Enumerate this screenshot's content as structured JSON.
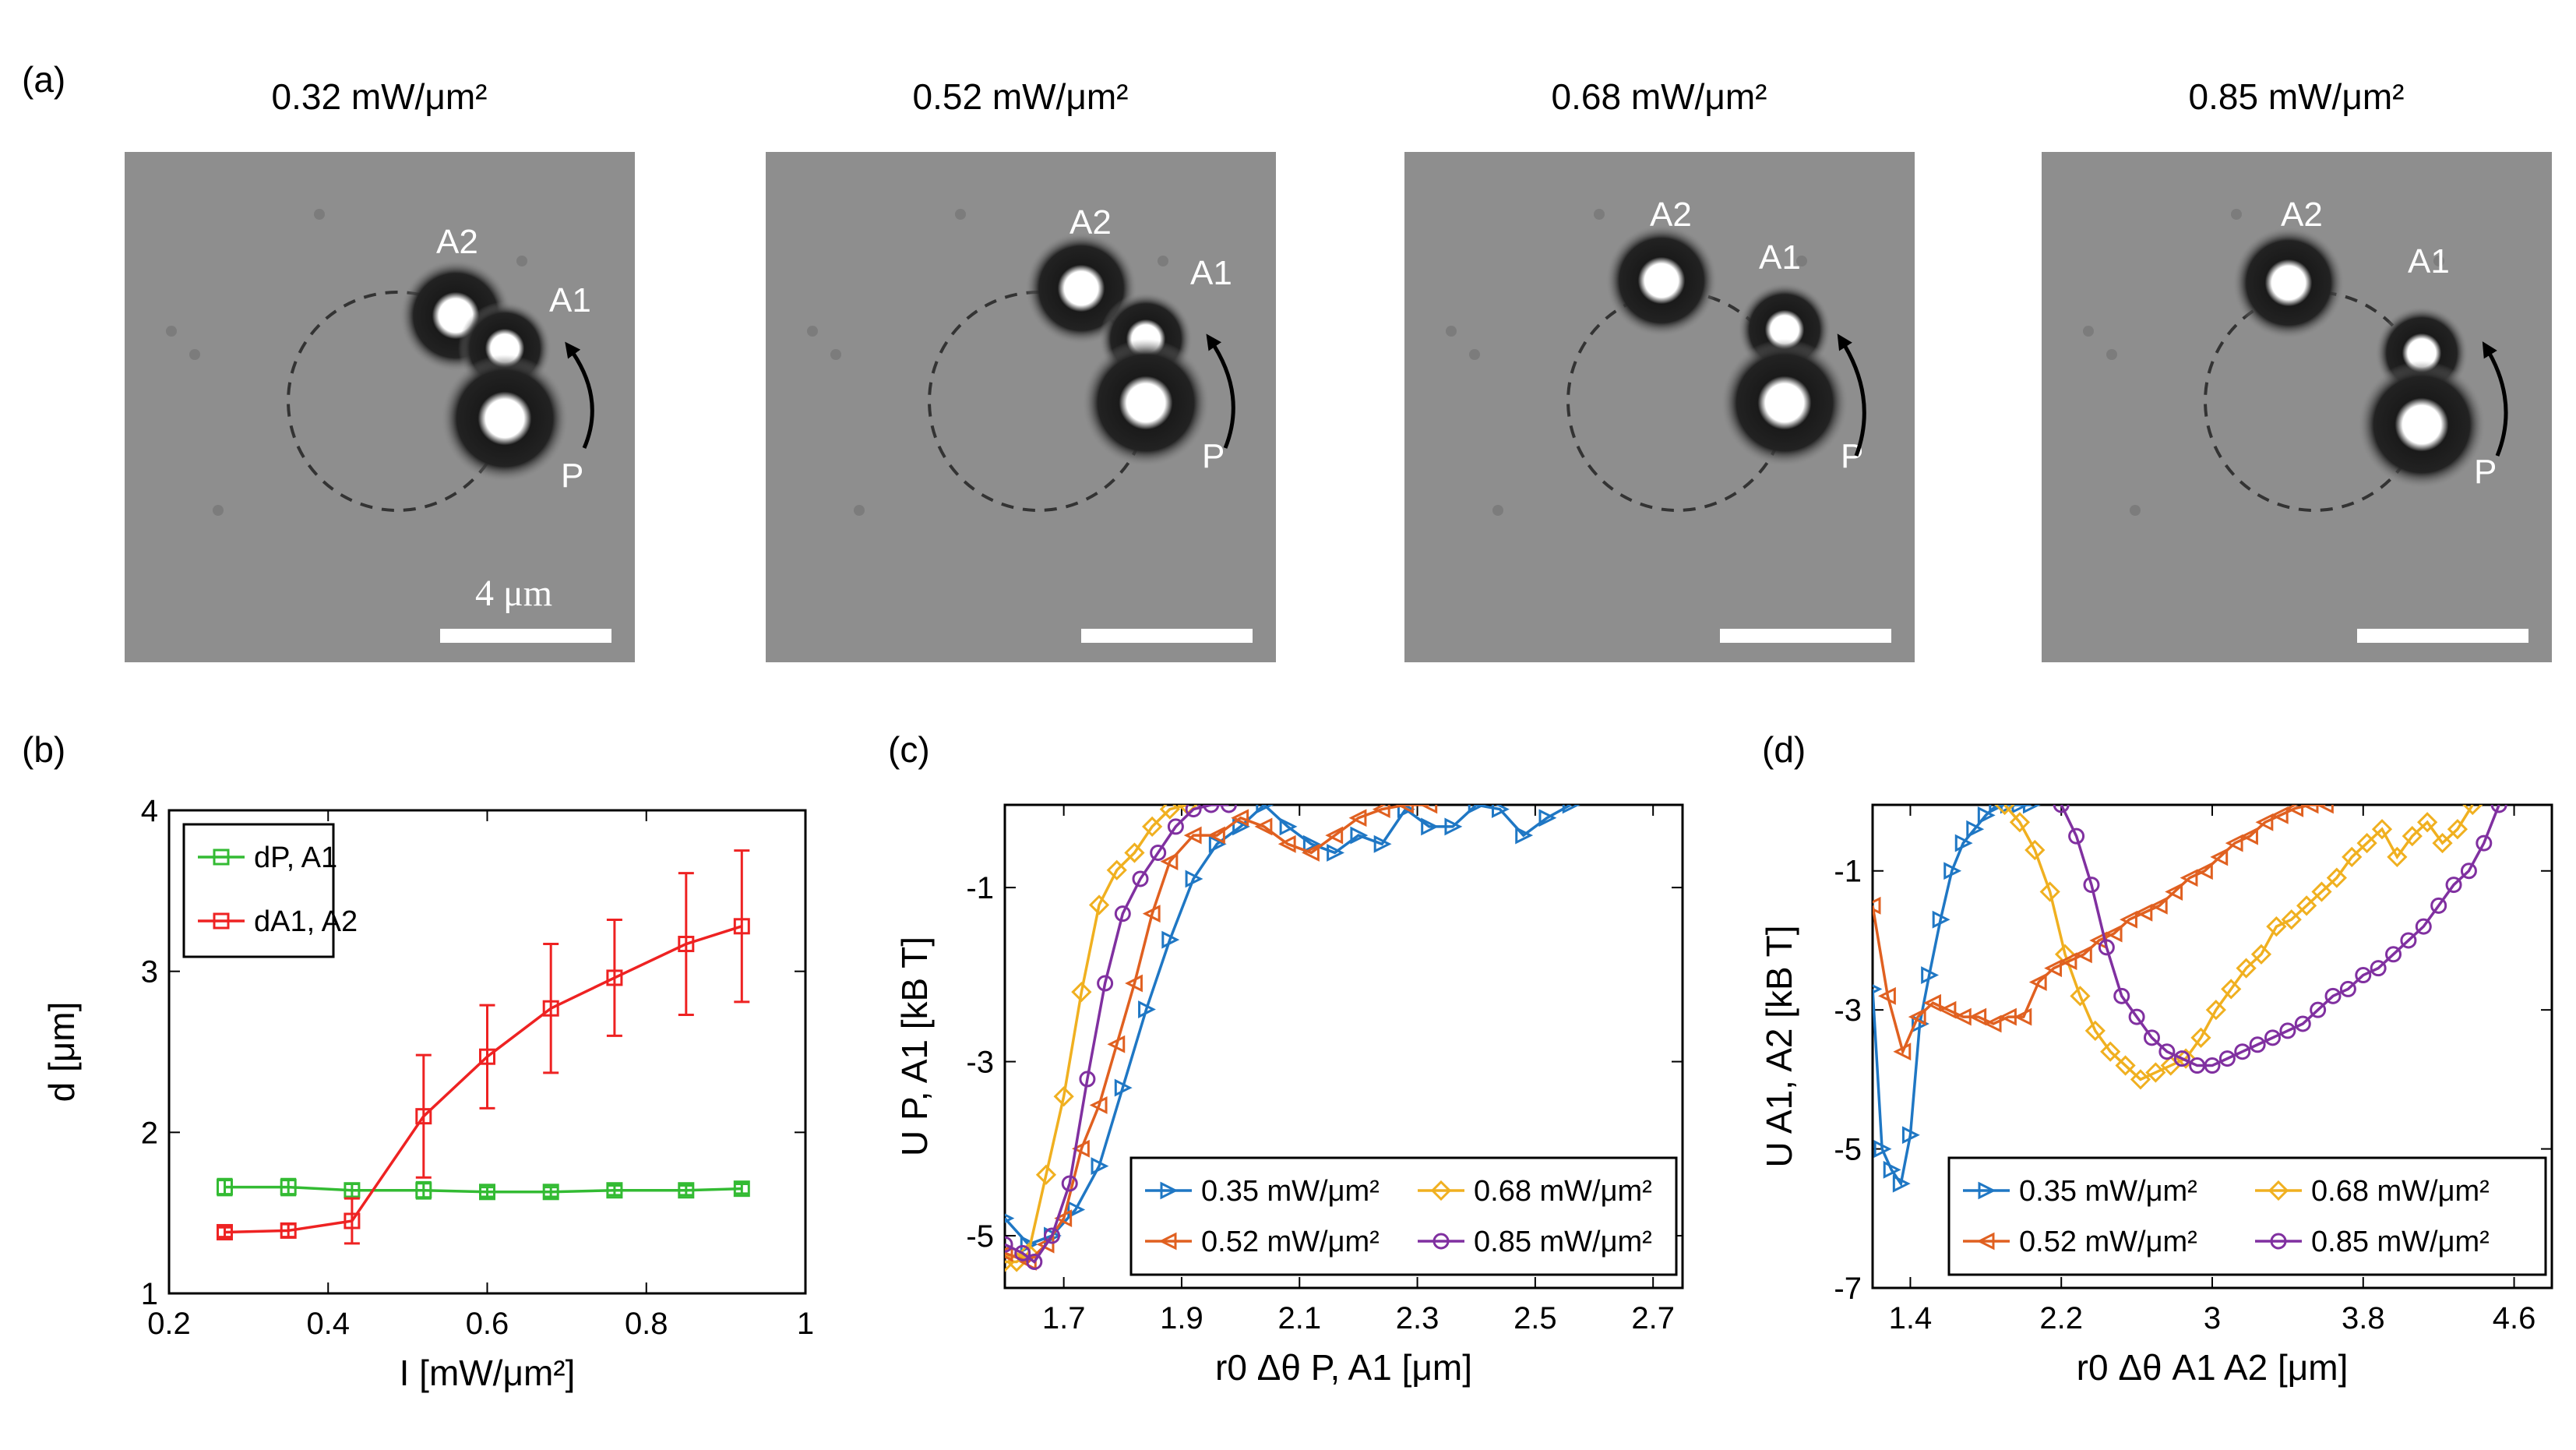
{
  "panel_a": {
    "label": "(a)",
    "scalebar_label": "4 μm",
    "marker_labels": {
      "p": "P",
      "a1": "A1",
      "a2": "A2"
    },
    "frames": [
      {
        "title": "0.32 mW/μm²"
      },
      {
        "title": "0.52 mW/μm²"
      },
      {
        "title": "0.68 mW/μm²"
      },
      {
        "title": "0.85 mW/μm²"
      }
    ]
  },
  "chart_data": [
    {
      "panel_label": "(b)",
      "type": "line",
      "xlabel": "I [mW/μm²]",
      "ylabel": "d [μm]",
      "xlim": [
        0.2,
        1
      ],
      "ylim": [
        1,
        4
      ],
      "xticks": [
        "0.2",
        "0.4",
        "0.6",
        "0.8",
        "1"
      ],
      "yticks": [
        "1",
        "2",
        "3",
        "4"
      ],
      "legend_position": "top-left",
      "series": [
        {
          "name": "dP, A1",
          "color": "#33bb33",
          "marker": "square",
          "x": [
            0.27,
            0.35,
            0.43,
            0.52,
            0.6,
            0.68,
            0.76,
            0.85,
            0.92
          ],
          "y": [
            1.66,
            1.66,
            1.64,
            1.64,
            1.63,
            1.63,
            1.64,
            1.64,
            1.65
          ],
          "err": [
            0.05,
            0.05,
            0.04,
            0.05,
            0.03,
            0.03,
            0.03,
            0.03,
            0.03
          ]
        },
        {
          "name": "dA1, A2",
          "color": "#ee2222",
          "marker": "square",
          "x": [
            0.27,
            0.35,
            0.43,
            0.52,
            0.6,
            0.68,
            0.76,
            0.85,
            0.92
          ],
          "y": [
            1.38,
            1.39,
            1.45,
            2.1,
            2.47,
            2.77,
            2.96,
            3.17,
            3.28
          ],
          "err": [
            0.03,
            0.04,
            0.14,
            0.38,
            0.32,
            0.4,
            0.36,
            0.44,
            0.47
          ]
        }
      ]
    },
    {
      "panel_label": "(c)",
      "type": "line",
      "xlabel": "r0 Δθ P, A1 [μm]",
      "ylabel": "U P, A1 [kB T]",
      "xlim": [
        1.6,
        2.75
      ],
      "ylim": [
        -5.6,
        -0.05
      ],
      "xticks": [
        "1.7",
        "1.9",
        "2.1",
        "2.3",
        "2.5",
        "2.7"
      ],
      "yticks": [
        "-1",
        "-3",
        "-5"
      ],
      "legend_position": "bottom-right",
      "series": [
        {
          "name": "0.35 mW/μm²",
          "color": "#1f77c4",
          "marker": "triangle-right",
          "x": [
            1.6,
            1.64,
            1.68,
            1.72,
            1.76,
            1.8,
            1.84,
            1.88,
            1.92,
            1.96,
            2.0,
            2.04,
            2.08,
            2.12,
            2.16,
            2.2,
            2.24,
            2.28,
            2.32,
            2.36,
            2.4,
            2.44,
            2.48,
            2.52,
            2.56
          ],
          "y": [
            -4.8,
            -5.1,
            -5.0,
            -4.7,
            -4.2,
            -3.3,
            -2.4,
            -1.6,
            -0.9,
            -0.5,
            -0.3,
            -0.05,
            -0.3,
            -0.5,
            -0.6,
            -0.4,
            -0.5,
            -0.1,
            -0.3,
            -0.3,
            -0.05,
            -0.1,
            -0.4,
            -0.2,
            -0.05
          ]
        },
        {
          "name": "0.68 mW/μm²",
          "color": "#f0b020",
          "marker": "diamond",
          "x": [
            1.6,
            1.62,
            1.64,
            1.67,
            1.7,
            1.73,
            1.76,
            1.79,
            1.82,
            1.85,
            1.88,
            1.91
          ],
          "y": [
            -5.3,
            -5.3,
            -5.2,
            -4.3,
            -3.4,
            -2.2,
            -1.2,
            -0.8,
            -0.6,
            -0.3,
            -0.1,
            -0.05
          ]
        },
        {
          "name": "0.52 mW/μm²",
          "color": "#e06020",
          "marker": "triangle-left",
          "x": [
            1.6,
            1.64,
            1.67,
            1.7,
            1.73,
            1.76,
            1.79,
            1.82,
            1.85,
            1.88,
            1.92,
            1.96,
            2.0,
            2.04,
            2.08,
            2.12,
            2.16,
            2.2,
            2.24,
            2.28,
            2.32
          ],
          "y": [
            -5.2,
            -5.3,
            -5.1,
            -4.8,
            -4.0,
            -3.5,
            -2.8,
            -2.1,
            -1.3,
            -0.7,
            -0.4,
            -0.4,
            -0.2,
            -0.3,
            -0.5,
            -0.6,
            -0.4,
            -0.2,
            -0.1,
            -0.05,
            -0.05
          ]
        },
        {
          "name": "0.85 mW/μm²",
          "color": "#8030a0",
          "marker": "circle",
          "x": [
            1.6,
            1.63,
            1.65,
            1.68,
            1.71,
            1.74,
            1.77,
            1.8,
            1.83,
            1.86,
            1.89,
            1.92,
            1.95,
            1.98
          ],
          "y": [
            -5.1,
            -5.2,
            -5.3,
            -5.0,
            -4.4,
            -3.2,
            -2.1,
            -1.3,
            -0.9,
            -0.6,
            -0.3,
            -0.1,
            -0.05,
            -0.05
          ]
        }
      ]
    },
    {
      "panel_label": "(d)",
      "type": "line",
      "xlabel": "r0 Δθ A1 A2 [μm]",
      "ylabel": "U A1, A2 [kB T]",
      "xlim": [
        1.2,
        4.8
      ],
      "ylim": [
        -7,
        -0.05
      ],
      "xticks": [
        "1.4",
        "2.2",
        "3",
        "3.8",
        "4.6"
      ],
      "yticks": [
        "-1",
        "-3",
        "-5",
        "-7"
      ],
      "legend_position": "bottom-right",
      "series": [
        {
          "name": "0.35 mW/μm²",
          "color": "#1f77c4",
          "marker": "triangle-right",
          "x": [
            1.2,
            1.25,
            1.3,
            1.35,
            1.4,
            1.45,
            1.5,
            1.56,
            1.62,
            1.68,
            1.74,
            1.8,
            1.86,
            1.92,
            1.98,
            2.04
          ],
          "y": [
            -2.7,
            -5.0,
            -5.3,
            -5.5,
            -4.8,
            -3.2,
            -2.5,
            -1.7,
            -1.0,
            -0.6,
            -0.4,
            -0.2,
            -0.05,
            -0.05,
            -0.05,
            -0.05
          ]
        },
        {
          "name": "0.68 mW/μm²",
          "color": "#f0b020",
          "marker": "diamond",
          "x": [
            1.9,
            1.98,
            2.06,
            2.14,
            2.22,
            2.3,
            2.38,
            2.46,
            2.54,
            2.62,
            2.7,
            2.78,
            2.86,
            2.94,
            3.02,
            3.1,
            3.18,
            3.26,
            3.34,
            3.42,
            3.5,
            3.58,
            3.66,
            3.74,
            3.82,
            3.9,
            3.98,
            4.06,
            4.14,
            4.22,
            4.3,
            4.38
          ],
          "y": [
            -0.05,
            -0.3,
            -0.7,
            -1.3,
            -2.2,
            -2.8,
            -3.3,
            -3.6,
            -3.8,
            -4.0,
            -3.9,
            -3.8,
            -3.7,
            -3.4,
            -3.0,
            -2.7,
            -2.4,
            -2.2,
            -1.8,
            -1.7,
            -1.5,
            -1.3,
            -1.1,
            -0.8,
            -0.6,
            -0.4,
            -0.8,
            -0.5,
            -0.3,
            -0.6,
            -0.4,
            -0.05
          ]
        },
        {
          "name": "0.52 mW/μm²",
          "color": "#e06020",
          "marker": "triangle-left",
          "x": [
            1.2,
            1.28,
            1.36,
            1.44,
            1.52,
            1.6,
            1.68,
            1.76,
            1.84,
            1.92,
            2.0,
            2.08,
            2.16,
            2.24,
            2.32,
            2.4,
            2.48,
            2.56,
            2.64,
            2.72,
            2.8,
            2.88,
            2.96,
            3.04,
            3.12,
            3.2,
            3.28,
            3.36,
            3.44,
            3.52,
            3.6
          ],
          "y": [
            -1.5,
            -2.8,
            -3.6,
            -3.1,
            -2.9,
            -3.0,
            -3.1,
            -3.1,
            -3.2,
            -3.1,
            -3.1,
            -2.6,
            -2.4,
            -2.3,
            -2.2,
            -2.0,
            -1.9,
            -1.7,
            -1.6,
            -1.5,
            -1.3,
            -1.1,
            -1.0,
            -0.8,
            -0.6,
            -0.5,
            -0.3,
            -0.2,
            -0.1,
            -0.05,
            -0.05
          ]
        },
        {
          "name": "0.85 mW/μm²",
          "color": "#8030a0",
          "marker": "circle",
          "x": [
            2.2,
            2.28,
            2.36,
            2.44,
            2.52,
            2.6,
            2.68,
            2.76,
            2.84,
            2.92,
            3.0,
            3.08,
            3.16,
            3.24,
            3.32,
            3.4,
            3.48,
            3.56,
            3.64,
            3.72,
            3.8,
            3.88,
            3.96,
            4.04,
            4.12,
            4.2,
            4.28,
            4.36,
            4.44,
            4.52
          ],
          "y": [
            -0.05,
            -0.5,
            -1.2,
            -2.1,
            -2.8,
            -3.1,
            -3.4,
            -3.6,
            -3.7,
            -3.8,
            -3.8,
            -3.7,
            -3.6,
            -3.5,
            -3.4,
            -3.3,
            -3.2,
            -3.0,
            -2.8,
            -2.7,
            -2.5,
            -2.4,
            -2.2,
            -2.0,
            -1.8,
            -1.5,
            -1.2,
            -1.0,
            -0.6,
            -0.05
          ]
        }
      ]
    }
  ]
}
